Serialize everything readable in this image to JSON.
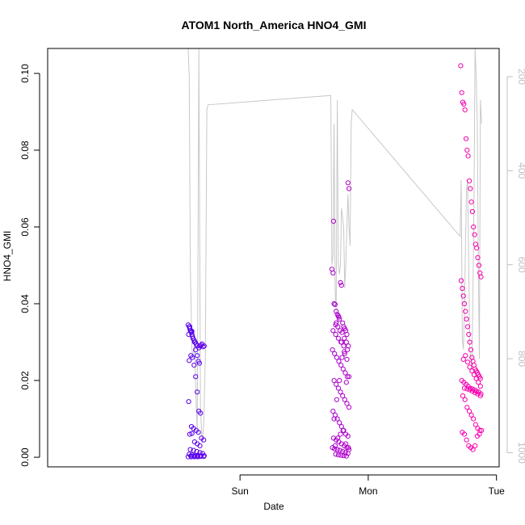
{
  "chart_data": {
    "type": "scatter",
    "title": "ATOM1 North_America HNO4_GMI",
    "xlabel": "Date",
    "ylabel": "HNO4_GMI",
    "x_unit": "hours since Saturday 00:00",
    "xlim": [
      -12.0,
      72.5
    ],
    "ylim": [
      -0.0025,
      0.1065
    ],
    "x_ticks": [
      {
        "value": 24,
        "label": "Sun"
      },
      {
        "value": 48,
        "label": "Mon"
      },
      {
        "value": 72,
        "label": "Tue"
      }
    ],
    "y_ticks": [
      {
        "value": 0.0,
        "label": "0.00"
      },
      {
        "value": 0.02,
        "label": "0.02"
      },
      {
        "value": 0.04,
        "label": "0.04"
      },
      {
        "value": 0.06,
        "label": "0.06"
      },
      {
        "value": 0.08,
        "label": "0.08"
      },
      {
        "value": 0.1,
        "label": "0.10"
      }
    ],
    "y2_axis": {
      "ylim": [
        1030,
        140
      ],
      "ticks": [
        {
          "value": 200,
          "label": "200"
        },
        {
          "value": 400,
          "label": "400"
        },
        {
          "value": 600,
          "label": "600"
        },
        {
          "value": 800,
          "label": "800"
        },
        {
          "value": 1000,
          "label": "1000"
        }
      ],
      "color": "#c0c0c0"
    },
    "grid": false,
    "point_color_start": "#5500ee",
    "point_color_end": "#ff00aa",
    "line_color": "#c8c8c8",
    "series": [
      {
        "kind": "points",
        "clusters": [
          {
            "x": [
              14.3,
              14.5,
              14.6,
              14.7,
              14.9,
              15.0,
              15.1,
              15.2,
              15.4,
              15.6,
              15.8,
              16.0,
              16.3,
              16.5,
              16.7,
              16.9,
              17.1,
              17.3,
              14.4,
              14.6,
              14.8,
              15.0,
              15.2,
              15.5,
              15.7,
              16.0,
              16.2,
              16.4,
              14.5,
              14.8,
              15.1,
              15.4,
              15.7,
              16.0,
              16.3,
              16.6,
              14.4,
              14.9,
              15.3,
              15.8,
              16.2,
              16.8,
              17.2,
              14.6,
              15.0,
              15.5,
              16.0,
              16.5,
              14.7,
              15.3,
              15.9,
              16.5,
              17.0,
              14.5,
              15.0,
              15.6,
              16.1,
              16.7,
              17.3,
              14.8,
              15.4,
              16.0,
              16.6,
              17.2,
              14.3,
              14.9,
              15.5,
              16.1
            ],
            "y": [
              0.0345,
              0.034,
              0.0335,
              0.033,
              0.0325,
              0.032,
              0.0315,
              0.031,
              0.0305,
              0.03,
              0.0295,
              0.029,
              0.0285,
              0.029,
              0.0292,
              0.0295,
              0.0288,
              0.029,
              0.032,
              0.034,
              0.033,
              0.0328,
              0.031,
              0.03,
              0.028,
              0.0265,
              0.025,
              0.0245,
              0.0252,
              0.0265,
              0.026,
              0.024,
              0.021,
              0.017,
              0.012,
              0.0115,
              0.0145,
              0.008,
              0.0075,
              0.007,
              0.0065,
              0.005,
              0.0045,
              0.006,
              0.0062,
              0.004,
              0.0035,
              0.003,
              0.002,
              0.0018,
              0.0015,
              0.0012,
              0.001,
              0.0008,
              0.0006,
              0.0005,
              0.0005,
              0.0004,
              0.0004,
              0.0003,
              0.0003,
              0.0003,
              0.0002,
              0.0002,
              0.0001,
              0.0001,
              0.0001,
              0.0001
            ]
          },
          {
            "x": [
              41.2,
              41.4,
              41.6,
              41.8,
              42.0,
              42.2,
              42.4,
              42.6,
              42.8,
              43.0,
              43.2,
              43.4,
              43.6,
              43.8,
              44.0,
              44.2,
              44.4,
              41.5,
              41.9,
              42.3,
              42.7,
              43.1,
              43.5,
              43.9,
              44.3,
              41.3,
              41.7,
              42.1,
              42.5,
              42.9,
              43.3,
              43.7,
              44.1,
              41.6,
              42.0,
              42.4,
              42.8,
              43.2,
              43.6,
              44.0,
              44.4,
              41.4,
              41.8,
              42.2,
              42.6,
              43.0,
              43.4,
              43.8,
              44.2,
              41.5,
              42.0,
              42.5,
              43.0,
              43.5,
              44.0,
              41.7,
              42.2,
              42.7,
              43.2,
              43.7,
              44.2,
              41.9,
              42.4,
              42.9,
              43.4,
              43.9,
              44.4,
              41.3,
              41.8,
              42.3,
              42.8,
              43.3,
              43.8,
              44.3,
              41.6,
              42.1,
              42.6,
              43.1,
              43.6,
              44.1,
              41.4,
              41.9,
              42.4,
              42.9,
              43.4,
              43.9,
              44.4,
              42.0,
              42.5,
              43.0,
              43.5,
              44.0
            ],
            "y": [
              0.049,
              0.048,
              0.04,
              0.0398,
              0.038,
              0.0372,
              0.0368,
              0.036,
              0.0455,
              0.0448,
              0.035,
              0.034,
              0.0335,
              0.033,
              0.032,
              0.0715,
              0.07,
              0.0615,
              0.0345,
              0.034,
              0.033,
              0.0325,
              0.031,
              0.03,
              0.029,
              0.028,
              0.027,
              0.026,
              0.025,
              0.024,
              0.023,
              0.022,
              0.021,
              0.02,
              0.019,
              0.018,
              0.017,
              0.016,
              0.015,
              0.014,
              0.013,
              0.012,
              0.011,
              0.01,
              0.009,
              0.008,
              0.007,
              0.006,
              0.0055,
              0.005,
              0.0045,
              0.004,
              0.0035,
              0.003,
              0.0025,
              0.0022,
              0.002,
              0.0018,
              0.0015,
              0.0012,
              0.001,
              0.0008,
              0.0006,
              0.0005,
              0.0004,
              0.0003,
              0.002,
              0.0025,
              0.003,
              0.005,
              0.006,
              0.007,
              0.0035,
              0.0025,
              0.01,
              0.015,
              0.02,
              0.026,
              0.027,
              0.028,
              0.033,
              0.032,
              0.031,
              0.03,
              0.029,
              0.0195,
              0.021,
              0.035,
              0.0365,
              0.03,
              0.0275,
              0.0255
            ]
          },
          {
            "x": [
              65.3,
              65.5,
              65.7,
              65.9,
              66.1,
              66.3,
              66.5,
              66.7,
              66.9,
              67.1,
              67.3,
              67.5,
              67.7,
              67.9,
              68.1,
              68.3,
              68.5,
              68.7,
              68.9,
              69.1,
              65.4,
              65.6,
              65.8,
              66.0,
              66.2,
              66.4,
              66.6,
              66.8,
              67.0,
              67.2,
              67.4,
              67.6,
              67.8,
              68.0,
              68.2,
              68.4,
              68.6,
              68.8,
              69.0,
              65.5,
              65.9,
              66.3,
              66.7,
              67.1,
              67.5,
              67.9,
              68.3,
              68.7,
              69.1,
              65.7,
              66.1,
              66.5,
              66.9,
              67.3,
              67.7,
              68.1,
              68.5,
              68.9,
              65.6,
              66.0,
              66.4,
              66.8,
              67.2,
              67.6,
              68.0,
              68.4,
              68.8,
              69.2,
              65.8,
              66.2,
              66.6,
              67.0,
              67.4,
              67.8,
              68.2,
              68.6,
              69.0,
              66.0,
              66.5,
              67.0,
              67.5,
              68.0,
              68.5,
              69.0
            ],
            "y": [
              0.102,
              0.095,
              0.0925,
              0.092,
              0.0905,
              0.083,
              0.08,
              0.0785,
              0.072,
              0.07,
              0.0665,
              0.064,
              0.06,
              0.058,
              0.0555,
              0.0545,
              0.052,
              0.05,
              0.048,
              0.047,
              0.046,
              0.044,
              0.042,
              0.04,
              0.038,
              0.036,
              0.034,
              0.032,
              0.03,
              0.028,
              0.026,
              0.025,
              0.024,
              0.023,
              0.0225,
              0.022,
              0.0215,
              0.021,
              0.0205,
              0.02,
              0.0195,
              0.019,
              0.0185,
              0.018,
              0.0178,
              0.0175,
              0.0172,
              0.017,
              0.0165,
              0.016,
              0.015,
              0.013,
              0.012,
              0.011,
              0.01,
              0.0085,
              0.0075,
              0.007,
              0.0065,
              0.006,
              0.0045,
              0.003,
              0.0025,
              0.002,
              0.003,
              0.0055,
              0.006,
              0.007,
              0.0255,
              0.0265,
              0.0248,
              0.0235,
              0.0225,
              0.0215,
              0.0205,
              0.0195,
              0.0185,
              0.018,
              0.0178,
              0.0176,
              0.0172,
              0.0168,
              0.0165,
              0.016
            ]
          }
        ]
      },
      {
        "kind": "line",
        "axis": "right",
        "x": [
          14.3,
          14.5,
          14.7,
          14.9,
          15.0,
          15.3,
          15.5,
          15.8,
          16.0,
          16.3,
          16.6,
          16.9,
          17.2,
          17.5,
          17.8,
          18.0,
          41.0,
          41.2,
          41.4,
          41.6,
          41.8,
          42.0,
          42.2,
          42.4,
          42.6,
          42.8,
          43.0,
          43.2,
          43.4,
          43.6,
          43.8,
          44.0,
          44.2,
          44.4,
          44.6,
          44.8,
          45.0,
          65.2,
          65.4,
          65.6,
          65.8,
          66.0,
          66.2,
          66.4,
          66.6,
          66.8,
          67.0,
          67.2,
          67.4,
          67.6,
          67.8,
          68.0,
          68.2,
          68.4,
          68.6,
          68.8,
          69.0,
          69.2
        ],
        "y": [
          140,
          200,
          600,
          720,
          780,
          800,
          760,
          900,
          950,
          140,
          900,
          980,
          940,
          800,
          270,
          260,
          240,
          600,
          580,
          300,
          650,
          700,
          250,
          600,
          620,
          600,
          480,
          500,
          520,
          650,
          600,
          520,
          450,
          520,
          560,
          300,
          270,
          540,
          420,
          760,
          780,
          700,
          560,
          440,
          420,
          600,
          780,
          800,
          820,
          650,
          450,
          140,
          200,
          300,
          600,
          800,
          250,
          300
        ]
      }
    ]
  }
}
